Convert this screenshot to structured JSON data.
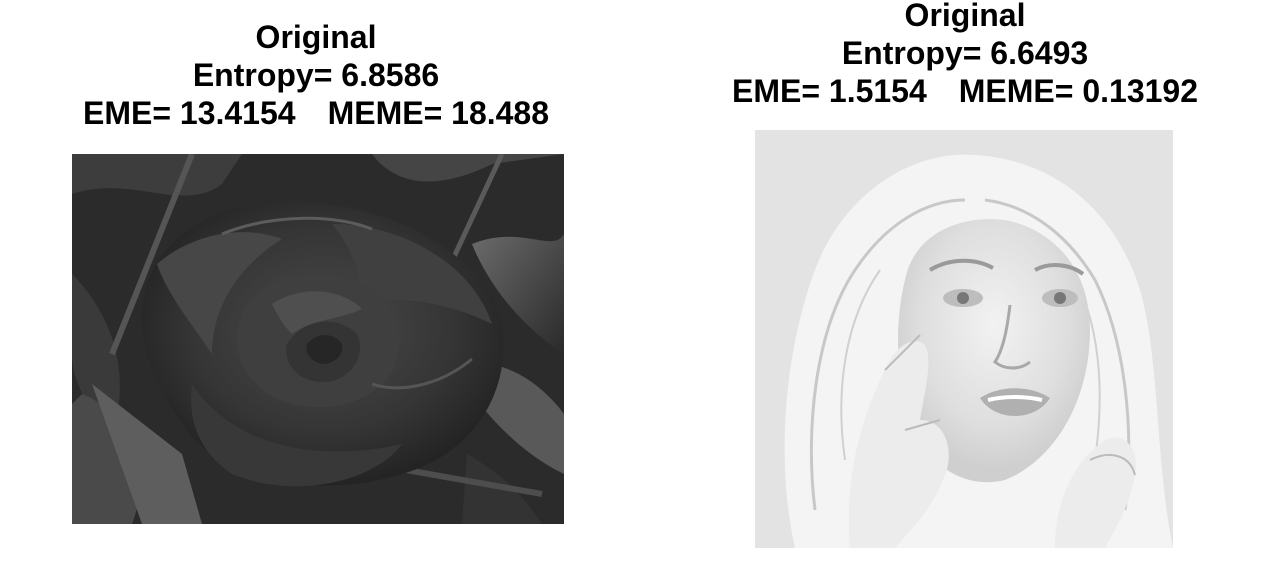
{
  "panels": [
    {
      "title": "Original",
      "entropy_label": "Entropy= 6.8586",
      "eme_label": "EME= 13.4154",
      "meme_label": "MEME= 18.488",
      "image_subject": "grayscale-rose-photo"
    },
    {
      "title": "Original",
      "entropy_label": "Entropy= 6.6493",
      "eme_label": "EME= 1.5154",
      "meme_label": "MEME= 0.13192",
      "image_subject": "grayscale-portrait-photo"
    }
  ],
  "colors": {
    "text": "#000000",
    "background": "#ffffff",
    "rose_dark": "#2e2e2e",
    "portrait_light": "#e8e8e8"
  }
}
